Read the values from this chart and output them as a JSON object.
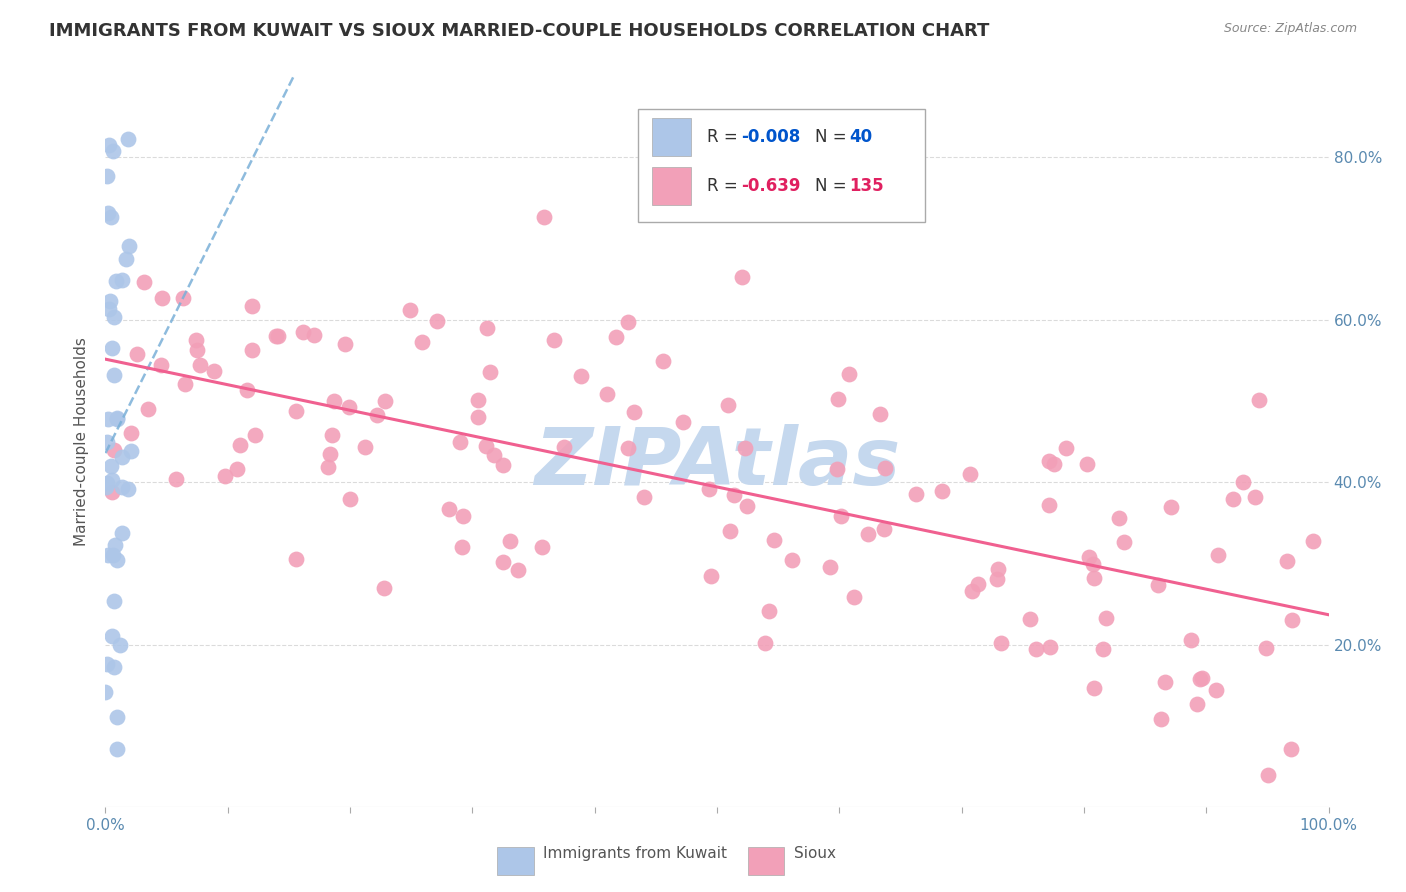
{
  "title": "IMMIGRANTS FROM KUWAIT VS SIOUX MARRIED-COUPLE HOUSEHOLDS CORRELATION CHART",
  "source": "Source: ZipAtlas.com",
  "ylabel_label": "Married-couple Households",
  "legend_label1": "Immigrants from Kuwait",
  "legend_label2": "Sioux",
  "color_kuwait": "#adc6e8",
  "color_sioux": "#f2a0b8",
  "line_color_kuwait": "#7ab0d8",
  "line_color_sioux": "#f06090",
  "background_color": "#ffffff",
  "grid_color": "#cccccc",
  "title_fontsize": 13,
  "axis_label_fontsize": 11,
  "tick_fontsize": 11,
  "watermark_text": "ZIPAtlas",
  "watermark_color": "#c5d8ee",
  "N_kuwait": 40,
  "N_sioux": 135,
  "ytick_vals": [
    0.2,
    0.4,
    0.6,
    0.8
  ],
  "xmin": 0.0,
  "xmax": 1.0,
  "ymin": 0.0,
  "ymax": 0.9
}
